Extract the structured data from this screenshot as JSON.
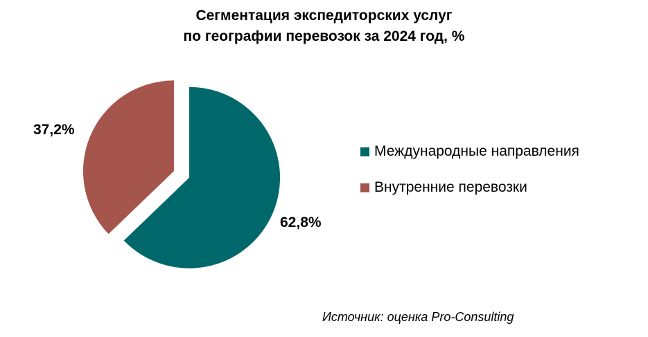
{
  "title_line1": "Сегментация экспедиторских услуг",
  "title_line2": "по географии перевозок за 2024 год, %",
  "source": "Источник: оценка Pro-Consulting",
  "chart_data": {
    "type": "pie",
    "title": "Сегментация экспедиторских услуг по географии перевозок за 2024 год, %",
    "exploded": true,
    "legend_position": "right",
    "slices": [
      {
        "name": "Международные направления",
        "value": 62.8,
        "label": "62,8%",
        "color": "#00686B"
      },
      {
        "name": "Внутренние перевозки",
        "value": 37.2,
        "label": "37,2%",
        "color": "#A5554C"
      }
    ]
  }
}
